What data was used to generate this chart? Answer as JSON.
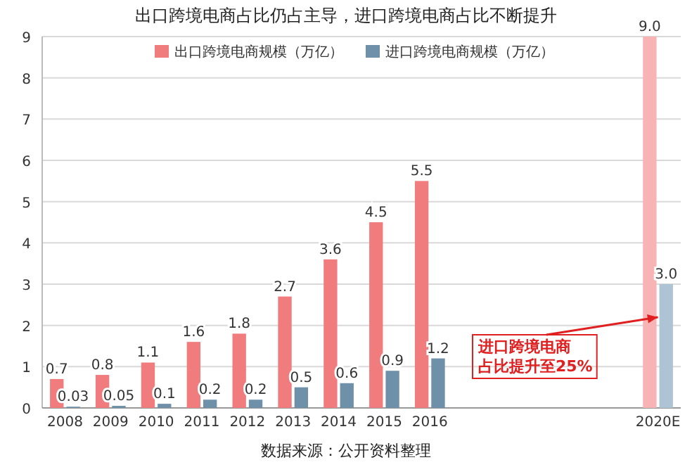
{
  "chart_data": {
    "type": "bar",
    "title": "出口跨境电商占比仍占主导，进口跨境电商占比不断提升",
    "categories": [
      "2008",
      "2009",
      "2010",
      "2011",
      "2012",
      "2013",
      "2014",
      "2015",
      "2016",
      null,
      null,
      null,
      null,
      "2020E"
    ],
    "series": [
      {
        "name": "出口跨境电商规模（万亿）",
        "color": "#f07c7e",
        "colors": [
          "#f07c7e",
          "#f07c7e",
          "#f07c7e",
          "#f07c7e",
          "#f07c7e",
          "#f07c7e",
          "#f07c7e",
          "#f07c7e",
          "#f07c7e",
          null,
          null,
          null,
          null,
          "#f8b4b5"
        ],
        "values": [
          0.7,
          0.8,
          1.1,
          1.6,
          1.8,
          2.7,
          3.6,
          4.5,
          5.5,
          null,
          null,
          null,
          null,
          9.0
        ],
        "value_labels": [
          "0.7",
          "0.8",
          "1.1",
          "1.6",
          "1.8",
          "2.7",
          "3.6",
          "4.5",
          "5.5",
          null,
          null,
          null,
          null,
          "9.0"
        ]
      },
      {
        "name": "进口跨境电商规模（万亿）",
        "color": "#6f90a9",
        "colors": [
          "#6f90a9",
          "#6f90a9",
          "#6f90a9",
          "#6f90a9",
          "#6f90a9",
          "#6f90a9",
          "#6f90a9",
          "#6f90a9",
          "#6f90a9",
          null,
          null,
          null,
          null,
          "#aec3d3"
        ],
        "values": [
          0.03,
          0.05,
          0.1,
          0.2,
          0.2,
          0.5,
          0.6,
          0.9,
          1.2,
          null,
          null,
          null,
          null,
          3.0
        ],
        "value_labels": [
          "0.03",
          "0.05",
          "0.1",
          "0.2",
          "0.2",
          "0.5",
          "0.6",
          "0.9",
          "1.2",
          null,
          null,
          null,
          null,
          "3.0"
        ]
      }
    ],
    "ylim": [
      0,
      9
    ],
    "yticks": [
      0,
      1,
      2,
      3,
      4,
      5,
      6,
      7,
      8,
      9
    ],
    "grid": "y",
    "legend": "top",
    "annotations": [
      {
        "text": "进口跨境电商占比提升至25%",
        "x": "2020E",
        "y": 2.2
      },
      "数据来源：公开资料整理"
    ]
  }
}
